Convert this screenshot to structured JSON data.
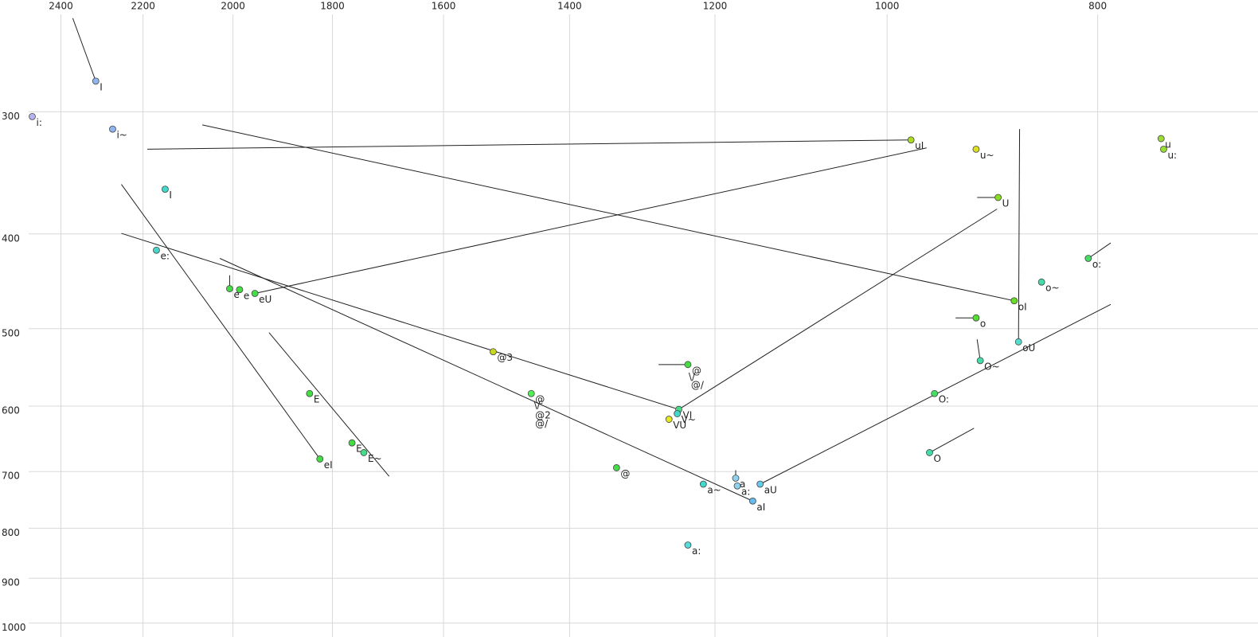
{
  "chart_data": {
    "type": "scatter",
    "log_x": true,
    "log_y": true,
    "grid": true,
    "xlim": [
      2560,
      675
    ],
    "ylim": [
      228,
      1022
    ],
    "xticks": [
      2400,
      2200,
      2000,
      1800,
      1600,
      1400,
      1200,
      1000,
      800
    ],
    "yticks": [
      300,
      400,
      500,
      600,
      700,
      800,
      900,
      1000
    ],
    "points": [
      {
        "label": "I",
        "x": 2313,
        "y": 276,
        "color": "#8fb4ee"
      },
      {
        "label": "i:",
        "x": 2474,
        "y": 300,
        "color": "#b4b4f0"
      },
      {
        "label": "i~",
        "x": 2272,
        "y": 309,
        "color": "#8fb4ee"
      },
      {
        "label": "I",
        "x": 2149,
        "y": 356,
        "color": "#44d8cc"
      },
      {
        "label": "e:",
        "x": 2169,
        "y": 411,
        "color": "#44d8cc"
      },
      {
        "label": "e",
        "x": 2007,
        "y": 450,
        "color": "#44dd44"
      },
      {
        "label": "e",
        "x": 1986,
        "y": 451,
        "color": "#44dd44"
      },
      {
        "label": "eU",
        "x": 1954,
        "y": 455,
        "color": "#44dd44"
      },
      {
        "label": "@3",
        "x": 1518,
        "y": 522,
        "color": "#c8d820"
      },
      {
        "label": "@",
        "x": 1458,
        "y": 576,
        "color": "#55ee55",
        "label_color": "#999999"
      },
      {
        "label": "@",
        "x": 1235,
        "y": 538,
        "color": "#44dd44"
      },
      {
        "label": "VI",
        "x": 1247,
        "y": 598,
        "color": "#44dd88"
      },
      {
        "label": "V~",
        "x": 1249,
        "y": 604,
        "color": "#44d8cc"
      },
      {
        "label": "VU",
        "x": 1260,
        "y": 612,
        "color": "#e8e820"
      },
      {
        "label": "@",
        "x": 1332,
        "y": 686,
        "color": "#44dd44",
        "label_color": "#999999"
      },
      {
        "label": "a~",
        "x": 1215,
        "y": 713,
        "color": "#44d8cc"
      },
      {
        "label": "a",
        "x": 1174,
        "y": 703,
        "color": "#8fd0ee"
      },
      {
        "label": "a:",
        "x": 1172,
        "y": 716,
        "color": "#8fd0ee"
      },
      {
        "label": "aI",
        "x": 1153,
        "y": 742,
        "color": "#66bbee"
      },
      {
        "label": "aU",
        "x": 1144,
        "y": 713,
        "color": "#66ccee"
      },
      {
        "label": "a:",
        "x": 1235,
        "y": 823,
        "color": "#55dddd",
        "label_color": "#999999"
      },
      {
        "label": "E",
        "x": 1844,
        "y": 576,
        "color": "#44dd44"
      },
      {
        "label": "eI",
        "x": 1824,
        "y": 672,
        "color": "#44dd44"
      },
      {
        "label": "E",
        "x": 1763,
        "y": 647,
        "color": "#44dd44"
      },
      {
        "label": "E~",
        "x": 1741,
        "y": 662,
        "color": "#44dd88"
      },
      {
        "label": "uI",
        "x": 975,
        "y": 317,
        "color": "#aadd22"
      },
      {
        "label": "u~",
        "x": 910,
        "y": 324,
        "color": "#dddd22"
      },
      {
        "label": "U",
        "x": 889,
        "y": 363,
        "color": "#88dd22"
      },
      {
        "label": "u",
        "x": 748,
        "y": 316,
        "color": "#99dd33"
      },
      {
        "label": "u:",
        "x": 746,
        "y": 324,
        "color": "#99dd33"
      },
      {
        "label": "o:",
        "x": 808,
        "y": 419,
        "color": "#44dd66"
      },
      {
        "label": "o~",
        "x": 849,
        "y": 443,
        "color": "#44ddaa"
      },
      {
        "label": "oI",
        "x": 874,
        "y": 463,
        "color": "#66dd22"
      },
      {
        "label": "o",
        "x": 910,
        "y": 482,
        "color": "#55dd33"
      },
      {
        "label": "oU",
        "x": 870,
        "y": 510,
        "color": "#55ddcc"
      },
      {
        "label": "O~",
        "x": 906,
        "y": 533,
        "color": "#44ddaa"
      },
      {
        "label": "O:",
        "x": 951,
        "y": 576,
        "color": "#44dd66"
      },
      {
        "label": "O",
        "x": 956,
        "y": 662,
        "color": "#44ddaa"
      }
    ],
    "annotations": [
      {
        "text": "\\/",
        "x": 1454,
        "y": 592,
        "color": "#999999"
      },
      {
        "text": "@2",
        "x": 1452,
        "y": 607,
        "color": "#222222"
      },
      {
        "text": "@/",
        "x": 1452,
        "y": 619,
        "color": "#999999"
      },
      {
        "text": "\\/",
        "x": 1234,
        "y": 554,
        "color": "#222222"
      },
      {
        "text": "@/",
        "x": 1231,
        "y": 565,
        "color": "#222222"
      }
    ],
    "segments": [
      {
        "x": [
          2370,
          2313
        ],
        "y": [
          238,
          276
        ]
      },
      {
        "x": [
          2190,
          975
        ],
        "y": [
          324,
          317
        ]
      },
      {
        "x": [
          2066,
          874
        ],
        "y": [
          306,
          463
        ]
      },
      {
        "x": [
          1954,
          959
        ],
        "y": [
          455,
          323
        ]
      },
      {
        "x": [
          2251,
          1824
        ],
        "y": [
          352,
          672
        ]
      },
      {
        "x": [
          2251,
          1247
        ],
        "y": [
          395,
          598
        ]
      },
      {
        "x": [
          2028,
          1153
        ],
        "y": [
          419,
          742
        ]
      },
      {
        "x": [
          1925,
          1695
        ],
        "y": [
          499,
          700
        ]
      },
      {
        "x": [
          1247,
          890
        ],
        "y": [
          598,
          373
        ]
      },
      {
        "x": [
          1274,
          1235
        ],
        "y": [
          538,
          538
        ]
      },
      {
        "x": [
          1144,
          789
        ],
        "y": [
          713,
          467
        ]
      },
      {
        "x": [
          869,
          870
        ],
        "y": [
          309,
          510
        ]
      },
      {
        "x": [
          956,
          912
        ],
        "y": [
          662,
          625
        ]
      },
      {
        "x": [
          808,
          789
        ],
        "y": [
          419,
          404
        ]
      },
      {
        "x": [
          909,
          889
        ],
        "y": [
          363,
          363
        ]
      },
      {
        "x": [
          930,
          910
        ],
        "y": [
          482,
          482
        ]
      },
      {
        "x": [
          909,
          906
        ],
        "y": [
          507,
          533
        ]
      },
      {
        "x": [
          2007,
          2007
        ],
        "y": [
          436,
          450
        ]
      },
      {
        "x": [
          1174,
          1174
        ],
        "y": [
          690,
          703
        ]
      }
    ]
  }
}
